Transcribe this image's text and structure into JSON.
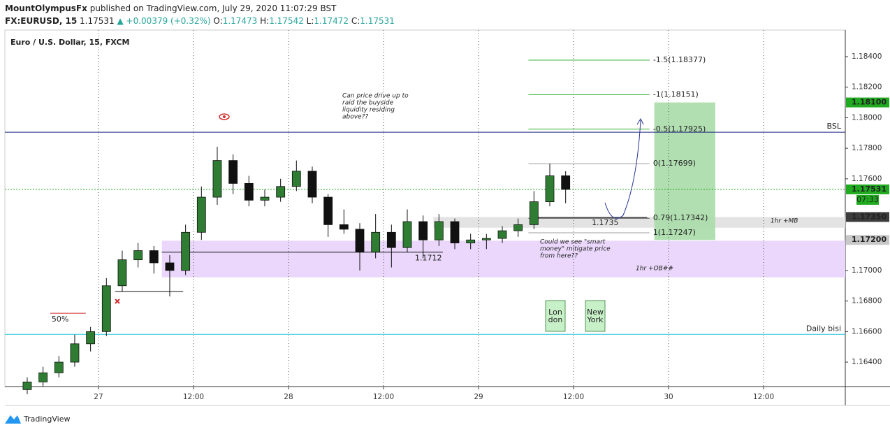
{
  "header": {
    "publisher": "MountOlympusFx",
    "published": "published on TradingView.com, July 29, 2020 11:07:29 BST",
    "symbol": "FX:EURUSD, 15",
    "last": "1.17531",
    "change": "▲ +0.00379 (+0.32%)",
    "ohlc": [
      {
        "key": "O:",
        "value": "1.17473"
      },
      {
        "key": "H:",
        "value": "1.17542"
      },
      {
        "key": "L:",
        "value": "1.17472"
      },
      {
        "key": "C:",
        "value": "1.17531"
      }
    ]
  },
  "chart_data": {
    "type": "candlestick",
    "title": "Euro / U.S. Dollar, 15, FXCM",
    "x": [
      -9,
      -7,
      -5,
      -3,
      -1,
      1,
      3,
      5,
      7,
      9,
      11,
      13,
      15,
      17,
      19,
      21,
      23,
      25,
      27,
      29,
      31,
      33,
      35,
      37,
      39,
      41,
      43,
      45,
      47,
      49,
      51,
      53,
      55,
      57,
      59
    ],
    "open": [
      1.1622,
      1.1627,
      1.1633,
      1.164,
      1.1652,
      1.166,
      1.169,
      1.1707,
      1.1713,
      1.1705,
      1.17,
      1.1725,
      1.1748,
      1.1772,
      1.1757,
      1.1746,
      1.1748,
      1.1755,
      1.1765,
      1.1748,
      1.173,
      1.1727,
      1.1712,
      1.1725,
      1.1715,
      1.1732,
      1.172,
      1.1732,
      1.1718,
      1.172,
      1.1721,
      1.1726,
      1.173,
      1.1745,
      1.1762
    ],
    "high": [
      1.163,
      1.1637,
      1.1644,
      1.1658,
      1.1663,
      1.1695,
      1.1713,
      1.1718,
      1.1716,
      1.171,
      1.173,
      1.1755,
      1.1781,
      1.1776,
      1.1762,
      1.1753,
      1.176,
      1.1772,
      1.1768,
      1.175,
      1.174,
      1.1731,
      1.1737,
      1.173,
      1.174,
      1.1736,
      1.1737,
      1.1734,
      1.1724,
      1.1724,
      1.1729,
      1.1734,
      1.1752,
      1.177,
      1.1765
    ],
    "low": [
      1.1619,
      1.1624,
      1.163,
      1.1637,
      1.1647,
      1.1657,
      1.1686,
      1.1702,
      1.1698,
      1.1683,
      1.1697,
      1.172,
      1.1743,
      1.175,
      1.1742,
      1.1742,
      1.1745,
      1.1752,
      1.1744,
      1.1722,
      1.1724,
      1.17,
      1.1708,
      1.1702,
      1.1712,
      1.1708,
      1.1716,
      1.1714,
      1.1714,
      1.1714,
      1.1718,
      1.1722,
      1.1727,
      1.1742,
      1.1744
    ],
    "close": [
      1.1627,
      1.1633,
      1.164,
      1.1652,
      1.166,
      1.169,
      1.1707,
      1.1713,
      1.1705,
      1.17,
      1.1725,
      1.1748,
      1.1772,
      1.1757,
      1.1746,
      1.1748,
      1.1755,
      1.1765,
      1.1748,
      1.173,
      1.1727,
      1.1712,
      1.1725,
      1.1715,
      1.1732,
      1.172,
      1.1732,
      1.1718,
      1.172,
      1.1721,
      1.1726,
      1.173,
      1.1745,
      1.1762,
      1.17531
    ],
    "up_color": "#2e7d32",
    "down_color": "#111111",
    "xlim": [
      -11.82,
      94.32
    ],
    "xticks": [
      {
        "value": 0,
        "label": "27"
      },
      {
        "value": 12,
        "label": "12:00"
      },
      {
        "value": 24,
        "label": "28"
      },
      {
        "value": 36,
        "label": "12:00"
      },
      {
        "value": 48,
        "label": "29"
      },
      {
        "value": 60,
        "label": "12:00"
      },
      {
        "value": 72,
        "label": "30"
      },
      {
        "value": 84,
        "label": "12:00"
      }
    ],
    "ylim": [
      1.1624,
      1.18574
    ],
    "yticks": [
      {
        "value": 1.184,
        "label": "1.18400"
      },
      {
        "value": 1.182,
        "label": "1.18200"
      },
      {
        "value": 1.18,
        "label": "1.18000"
      },
      {
        "value": 1.178,
        "label": "1.17800"
      },
      {
        "value": 1.176,
        "label": "1.17600"
      },
      {
        "value": 1.17,
        "label": "1.17000"
      },
      {
        "value": 1.168,
        "label": "1.16800"
      },
      {
        "value": 1.166,
        "label": "1.16600"
      },
      {
        "value": 1.164,
        "label": "1.16400"
      }
    ],
    "grid": true,
    "price_markers": [
      {
        "value": 1.181,
        "label": "1.18100",
        "color": "#1faa1f"
      },
      {
        "value": 1.17531,
        "label": "1.17531",
        "color": "#1faa1f"
      },
      {
        "value": 1.1735,
        "label": "1.17350",
        "color": "#3c3c3c"
      },
      {
        "value": 1.172,
        "label": "1.17200",
        "color": "#c8c8c8"
      }
    ],
    "countdown": "07:33",
    "fib_levels": [
      {
        "value": 1.18377,
        "label": "-1.5(1.18377)",
        "color": "#3fb23f"
      },
      {
        "value": 1.18151,
        "label": "-1(1.18151)",
        "color": "#3fb23f"
      },
      {
        "value": 1.17925,
        "label": "-0.5(1.17925)",
        "color": "#3fb23f"
      },
      {
        "value": 1.17699,
        "label": "0(1.17699)",
        "color": "#9e9e9e"
      },
      {
        "value": 1.17342,
        "label": "0.79(1.17342)",
        "color": "#555555"
      },
      {
        "value": 1.17247,
        "label": "1(1.17247)",
        "color": "#9e9e9e"
      }
    ],
    "fib_x": [
      54.3,
      69.6
    ],
    "hlines": [
      {
        "value": 1.17905,
        "label": "BSL",
        "color": "#1a237e"
      },
      {
        "value": 1.16582,
        "label": "Daily bisi",
        "color": "#26c6da"
      }
    ],
    "segments": [
      {
        "value": 1.1712,
        "x0": 8.0,
        "x1": 43.5,
        "label": "1.1712",
        "color": "#111111"
      },
      {
        "value": 1.17347,
        "x0": 54.8,
        "x1": 69.3,
        "label": "1.1735",
        "color": "#111111"
      },
      {
        "value": 1.16862,
        "x0": 2.1,
        "x1": 10.7,
        "color": "#111111"
      },
      {
        "value": 1.1672,
        "x0": -6.1,
        "x1": -1.6,
        "label": "50%",
        "color": "#d32f2f"
      }
    ],
    "zones": [
      {
        "label": "1hr +MB",
        "from": 1.1728,
        "to": 1.1735,
        "x0": 42.3,
        "color": "#e3e3e3"
      },
      {
        "label": "1hr +OB##",
        "from": 1.16955,
        "to": 1.17195,
        "x0": 8.0,
        "color": "#ead7fb"
      }
    ],
    "target_box": {
      "from": 1.172,
      "to": 1.181,
      "x0": 70.2,
      "x1": 77.9,
      "color": "#a8dca8"
    },
    "annotations": [
      {
        "lines": [
          "Can price drive up to",
          "raid the buyside",
          "liquidity residing",
          "above??"
        ]
      },
      {
        "lines": [
          "Could we see \"smart",
          "money\" mitigate price",
          "from here??"
        ]
      }
    ],
    "sessions": [
      {
        "lines": [
          "Lon",
          "don"
        ]
      },
      {
        "lines": [
          "New",
          "York"
        ]
      }
    ]
  },
  "footer": {
    "brand": "TradingView"
  }
}
